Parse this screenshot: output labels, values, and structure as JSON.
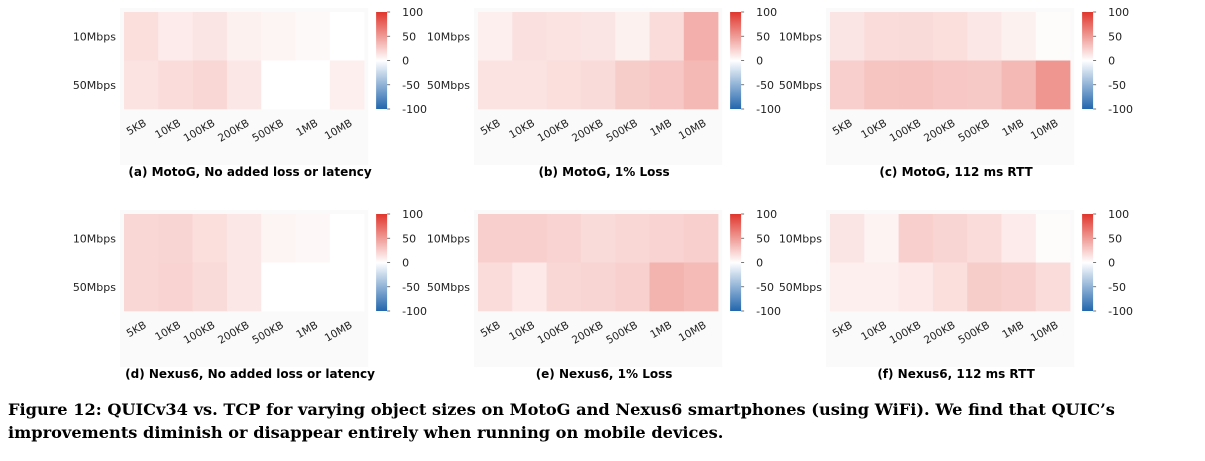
{
  "figure_caption": "Figure 12: QUICv34 vs. TCP for varying object sizes on MotoG and Nexus6 smartphones (using WiFi). We find that QUIC’s improvements diminish or disappear entirely when running on mobile devices.",
  "colorbar": {
    "ticks": [
      "100",
      "50",
      "0",
      "-50",
      "-100"
    ],
    "range": [
      -100,
      100
    ],
    "colors": {
      "negative": "#2166ac",
      "neutral": "#ffffff",
      "positive": "#e0362c"
    }
  },
  "chart_data": [
    {
      "type": "heatmap",
      "caption": "(a) MotoG, No added loss or latency",
      "rows": [
        "10Mbps",
        "50Mbps"
      ],
      "columns": [
        "5KB",
        "10KB",
        "100KB",
        "200KB",
        "500KB",
        "1MB",
        "10MB"
      ],
      "values": [
        [
          16,
          10,
          13,
          7,
          5,
          3,
          0
        ],
        [
          14,
          17,
          20,
          12,
          0,
          0,
          8
        ]
      ],
      "zlim": [
        -100,
        100
      ]
    },
    {
      "type": "heatmap",
      "caption": "(b) MotoG, 1% Loss",
      "rows": [
        "10Mbps",
        "50Mbps"
      ],
      "columns": [
        "5KB",
        "10KB",
        "100KB",
        "200KB",
        "500KB",
        "1MB",
        "10MB"
      ],
      "values": [
        [
          8,
          15,
          14,
          13,
          7,
          17,
          40
        ],
        [
          14,
          14,
          16,
          18,
          25,
          28,
          35
        ]
      ],
      "zlim": [
        -100,
        100
      ]
    },
    {
      "type": "heatmap",
      "caption": "(c) MotoG, 112 ms RTT",
      "rows": [
        "10Mbps",
        "50Mbps"
      ],
      "columns": [
        "5KB",
        "10KB",
        "100KB",
        "200KB",
        "500KB",
        "1MB",
        "10MB"
      ],
      "values": [
        [
          13,
          17,
          18,
          16,
          12,
          7,
          2
        ],
        [
          24,
          29,
          30,
          28,
          27,
          35,
          52
        ]
      ],
      "zlim": [
        -100,
        100
      ]
    },
    {
      "type": "heatmap",
      "caption": "(d) Nexus6, No added loss or latency",
      "rows": [
        "10Mbps",
        "50Mbps"
      ],
      "columns": [
        "5KB",
        "10KB",
        "100KB",
        "200KB",
        "500KB",
        "1MB",
        "10MB"
      ],
      "values": [
        [
          20,
          21,
          16,
          12,
          5,
          4,
          0
        ],
        [
          20,
          22,
          18,
          12,
          0,
          0,
          0
        ]
      ],
      "zlim": [
        -100,
        100
      ]
    },
    {
      "type": "heatmap",
      "caption": "(e) Nexus6, 1% Loss",
      "rows": [
        "10Mbps",
        "50Mbps"
      ],
      "columns": [
        "5KB",
        "10KB",
        "100KB",
        "200KB",
        "500KB",
        "1MB",
        "10MB"
      ],
      "values": [
        [
          24,
          24,
          22,
          18,
          20,
          22,
          24
        ],
        [
          17,
          11,
          20,
          21,
          23,
          38,
          34
        ]
      ],
      "zlim": [
        -100,
        100
      ]
    },
    {
      "type": "heatmap",
      "caption": "(f) Nexus6, 112 ms RTT",
      "rows": [
        "10Mbps",
        "50Mbps"
      ],
      "columns": [
        "5KB",
        "10KB",
        "100KB",
        "200KB",
        "500KB",
        "1MB",
        "10MB"
      ],
      "values": [
        [
          13,
          6,
          24,
          21,
          17,
          10,
          2
        ],
        [
          8,
          8,
          11,
          16,
          25,
          23,
          17
        ]
      ],
      "zlim": [
        -100,
        100
      ]
    }
  ]
}
